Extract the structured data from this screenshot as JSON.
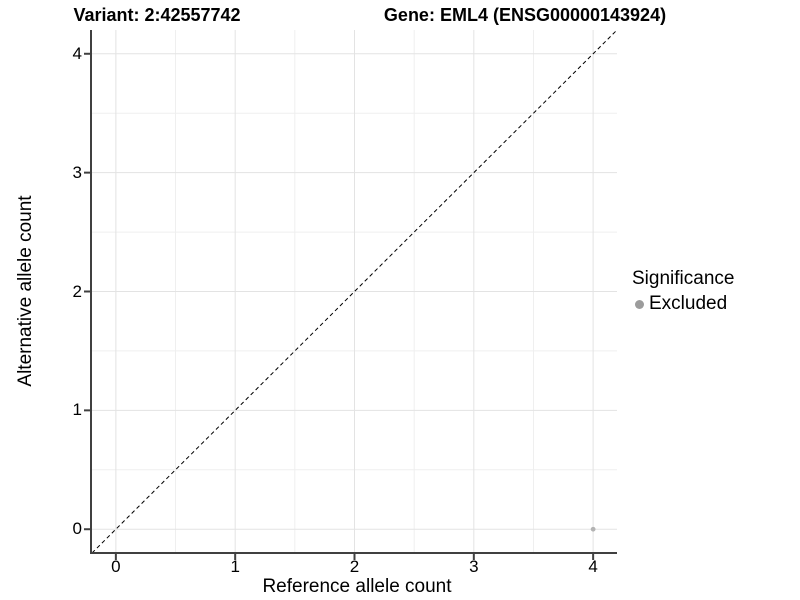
{
  "titles": {
    "variant": "Variant: 2:42557742",
    "gene": "Gene: EML4 (ENSG00000143924)"
  },
  "legend": {
    "title": "Significance",
    "items": [
      {
        "label": "Excluded",
        "color": "#9c9c9c"
      }
    ]
  },
  "chart_data": {
    "type": "scatter",
    "xlabel": "Reference allele count",
    "ylabel": "Alternative allele count",
    "xlim": [
      -0.2,
      4.2
    ],
    "ylim": [
      -0.2,
      4.2
    ],
    "x_ticks": [
      0,
      1,
      2,
      3,
      4
    ],
    "y_ticks": [
      0,
      1,
      2,
      3,
      4
    ],
    "minor_grid_step": 0.5,
    "grid": true,
    "legend_position": "right",
    "points": [
      {
        "x": 4,
        "y": 0,
        "series": "Excluded"
      }
    ],
    "reference_line": {
      "type": "identity",
      "slope": 1,
      "intercept": 0,
      "style": "dashed"
    },
    "colors": {
      "point": "#b3b3b3",
      "legend_swatch": "#9c9c9c",
      "grid_major": "#e3e3e3",
      "grid_minor": "#efefef",
      "axis": "#404040",
      "diagonal": "#000000",
      "background": "#ffffff",
      "text": "#000000"
    }
  }
}
